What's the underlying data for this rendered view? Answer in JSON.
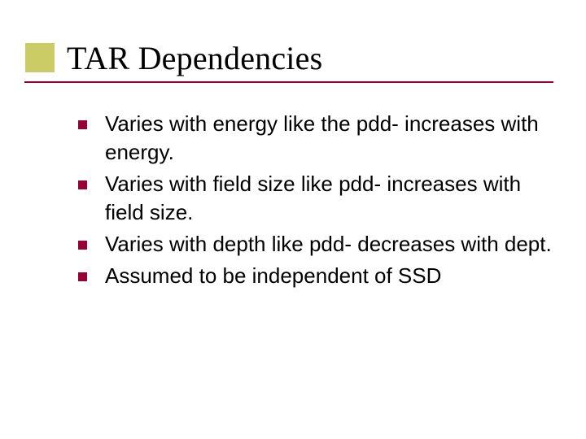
{
  "title": {
    "text": "TAR Dependencies",
    "color": "#000000",
    "accent_fill": "#cccc66",
    "accent_border": "#ffffff",
    "underline_color": "#990033",
    "font_family": "Times New Roman, Times, serif",
    "font_size_pt": 40
  },
  "bullets": {
    "marker_color": "#990033",
    "text_color": "#000000",
    "font_size_pt": 26,
    "items": [
      "Varies with energy like the pdd- increases with energy.",
      "Varies with field size like pdd- increases with field size.",
      "Varies with depth  like pdd- decreases with dept.",
      "Assumed to be independent of SSD"
    ]
  },
  "background_color": "#ffffff"
}
